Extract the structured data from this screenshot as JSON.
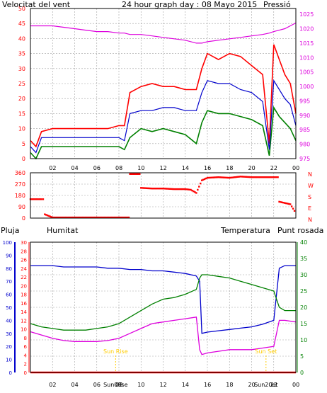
{
  "colors": {
    "wind_avg": "#0000cc",
    "wind_gust": "#ff0000",
    "wind_min": "#008000",
    "pressure": "#dd00dd",
    "direction": "#ff0000",
    "rain": "#ff0000",
    "humidity": "#0000cc",
    "temperature": "#008000",
    "dewpoint": "#dd00dd",
    "sun_marker": "#ffcc00",
    "grid": "#a0a0a0"
  },
  "x_ticks": [
    "02",
    "04",
    "06",
    "08",
    "10",
    "12",
    "14",
    "16",
    "18",
    "20",
    "22",
    "00"
  ],
  "chart_data": [
    {
      "type": "line",
      "title": "24 hour graph day : 08 Mayo 2015",
      "left_label": "Velocitat del vent",
      "right_label": "Pressió",
      "y_left_ticks": [
        "0",
        "5",
        "10",
        "15",
        "20",
        "25",
        "30",
        "35",
        "40",
        "45",
        "50"
      ],
      "ylim_left": [
        0,
        50
      ],
      "y_right_ticks": [
        "975",
        "980",
        "985",
        "990",
        "995",
        "1000",
        "1005",
        "1010",
        "1015",
        "1020",
        "1025"
      ],
      "ylim_right": [
        975,
        1027
      ],
      "x_hours": [
        0,
        0.5,
        1,
        2,
        3,
        4,
        5,
        6,
        7,
        8,
        8.5,
        9,
        10,
        11,
        12,
        13,
        14,
        15,
        15.5,
        16,
        17,
        18,
        19,
        20,
        21,
        21.6,
        22,
        22.5,
        23,
        23.5,
        24
      ],
      "series": [
        {
          "key": "gust",
          "values": [
            6,
            4,
            9,
            10,
            10,
            10,
            10,
            10,
            10,
            11,
            11,
            22,
            24,
            25,
            24,
            24,
            23,
            23,
            30,
            35,
            33,
            35,
            34,
            31,
            28,
            5,
            38,
            33,
            28,
            25,
            15
          ]
        },
        {
          "key": "avg",
          "values": [
            4,
            2,
            7,
            7,
            7,
            7,
            7,
            7,
            7,
            7,
            6,
            15,
            16,
            16,
            17,
            17,
            16,
            16,
            22,
            26,
            25,
            25,
            23,
            22,
            19,
            3,
            26,
            23,
            20,
            18,
            11
          ]
        },
        {
          "key": "min",
          "values": [
            2,
            0,
            4,
            4,
            4,
            4,
            4,
            4,
            4,
            4,
            3,
            7,
            10,
            9,
            10,
            9,
            8,
            5,
            12,
            16,
            15,
            15,
            14,
            13,
            11,
            1,
            17,
            14,
            12,
            10,
            6
          ]
        },
        {
          "key": "pressure",
          "values": [
            1021,
            1021,
            1021,
            1021,
            1020.5,
            1020,
            1019.5,
            1019,
            1019,
            1018.5,
            1018.5,
            1018,
            1018,
            1017.5,
            1017,
            1016.5,
            1016,
            1015,
            1015,
            1015.5,
            1016,
            1016.5,
            1017,
            1017.5,
            1018,
            1018.5,
            1019,
            1019.5,
            1020,
            1021,
            1022
          ]
        }
      ]
    },
    {
      "type": "scatter",
      "title": "",
      "y_ticks": [
        "360",
        "270",
        "180",
        "90",
        "0"
      ],
      "right_letters": [
        "N",
        "W",
        "S",
        "E",
        "N"
      ],
      "ylim": [
        0,
        360
      ],
      "x_hours": [
        0,
        0.5,
        1,
        1.3,
        2,
        3,
        4,
        5,
        6,
        7,
        8,
        8.8,
        9,
        10,
        11,
        12,
        13,
        14,
        14.5,
        15,
        15.5,
        16,
        17,
        18,
        19,
        20,
        21,
        22,
        22.5,
        23,
        23.5,
        24
      ],
      "values": [
        150,
        150,
        150,
        30,
        5,
        5,
        5,
        5,
        5,
        5,
        5,
        5,
        350,
        240,
        235,
        235,
        230,
        230,
        225,
        200,
        300,
        320,
        325,
        320,
        330,
        325,
        325,
        325,
        130,
        120,
        110,
        40
      ]
    },
    {
      "type": "line",
      "title": "",
      "labels": {
        "rain": "Pluja",
        "humidity": "Humitat",
        "temperature": "Temperatura",
        "dewpoint": "Punt rosada"
      },
      "y_rain_ticks": [
        "0",
        "10",
        "20",
        "30",
        "40",
        "50",
        "60",
        "70",
        "80",
        "90",
        "100"
      ],
      "y_hum_ticks": [
        "0",
        "2",
        "4",
        "6",
        "8",
        "10",
        "12",
        "14",
        "16",
        "18",
        "20",
        "22",
        "24",
        "26",
        "28",
        "30"
      ],
      "y_temp_ticks": [
        "0",
        "5",
        "10",
        "15",
        "20",
        "25",
        "30",
        "35",
        "40"
      ],
      "ylim_rain": [
        0,
        100
      ],
      "ylim_hum": [
        0,
        30
      ],
      "ylim_temp": [
        0,
        40
      ],
      "annotations": [
        {
          "text": "Sun Rise",
          "hour": 7.7
        },
        {
          "text": "Sun Set",
          "hour": 21.3
        }
      ],
      "bottom_marks": [
        {
          "text": "Sun08se",
          "hour": 7.7
        },
        {
          "text": "Sun20et",
          "hour": 21.3
        }
      ],
      "x_hours": [
        0,
        1,
        2,
        3,
        4,
        5,
        6,
        7,
        8,
        9,
        10,
        11,
        12,
        13,
        14,
        15,
        15.3,
        15.5,
        16,
        17,
        18,
        19,
        20,
        21,
        22,
        22.5,
        23,
        24
      ],
      "series": [
        {
          "key": "humidity",
          "values": [
            82,
            82,
            82,
            81,
            81,
            81,
            81,
            80,
            80,
            79,
            79,
            78,
            78,
            77,
            76,
            74,
            70,
            30,
            31,
            32,
            33,
            34,
            35,
            37,
            40,
            80,
            82,
            82
          ]
        },
        {
          "key": "temperature",
          "values": [
            15,
            14,
            13.5,
            13,
            13,
            13,
            13.5,
            14,
            15,
            17,
            19,
            21,
            22.5,
            23,
            24,
            25.5,
            29,
            30,
            30,
            29.5,
            29,
            28,
            27,
            26,
            25,
            20,
            19,
            19
          ]
        },
        {
          "key": "dewpoint",
          "values": [
            12.5,
            11.5,
            10.5,
            9.8,
            9.5,
            9.5,
            9.5,
            9.8,
            10.5,
            12,
            13.5,
            15,
            15.5,
            16,
            16.5,
            17,
            7,
            5.5,
            6,
            6.5,
            7,
            7,
            7,
            7.5,
            8,
            16,
            16,
            15.5
          ]
        },
        {
          "key": "rain",
          "values": [
            0,
            0,
            0,
            0,
            0,
            0,
            0,
            0,
            0,
            0,
            0,
            0,
            0,
            0,
            0,
            0,
            0,
            0,
            0,
            0,
            0,
            0,
            0,
            0,
            0,
            0,
            0,
            0
          ]
        }
      ]
    }
  ]
}
